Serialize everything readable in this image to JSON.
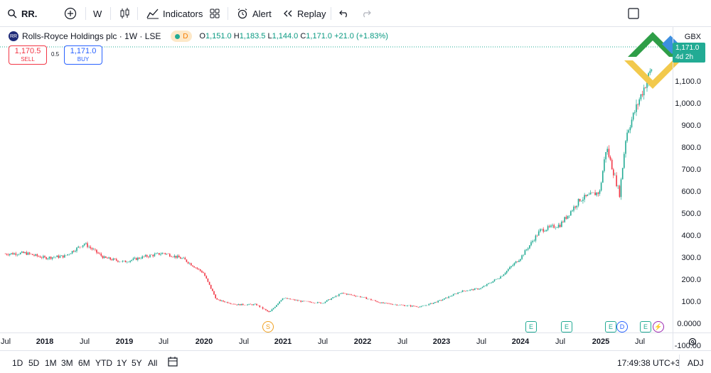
{
  "toolbar": {
    "symbol": "RR.",
    "interval": "W",
    "indicators_label": "Indicators",
    "alert_label": "Alert",
    "replay_label": "Replay"
  },
  "legend": {
    "title": "Rolls-Royce Holdings plc · 1W · LSE",
    "logo_text": "RR",
    "data_flag": "D",
    "o_key": "O",
    "o_val": "1,151.0",
    "h_key": "H",
    "h_val": "1,183.5",
    "l_key": "L",
    "l_val": "1,144.0",
    "c_key": "C",
    "c_val": "1,171.0",
    "change": "+21.0 (+1.83%)"
  },
  "trade": {
    "sell_price": "1,170.5",
    "sell_label": "SELL",
    "spread": "0.5",
    "buy_price": "1,171.0",
    "buy_label": "BUY"
  },
  "price_axis": {
    "labels": [
      "1,100.0",
      "1,000.0",
      "900.0",
      "800.0",
      "700.0",
      "600.0",
      "500.0",
      "400.0",
      "300.0",
      "200.0",
      "100.0",
      "0.0000",
      "-100.00"
    ],
    "top_label": "GBX",
    "last_price": "1,171.0",
    "countdown": "4d 2h"
  },
  "time_axis": {
    "labels": [
      "Jul",
      "2018",
      "Jul",
      "2019",
      "Jul",
      "2020",
      "Jul",
      "2021",
      "Jul",
      "2022",
      "Jul",
      "2023",
      "Jul",
      "2024",
      "Jul",
      "2025",
      "Jul"
    ]
  },
  "events": [
    "S",
    "E",
    "E",
    "E",
    "D",
    "E",
    "⚡"
  ],
  "bottom": {
    "timeframes": [
      "1D",
      "5D",
      "1M",
      "3M",
      "6M",
      "YTD",
      "1Y",
      "5Y",
      "All"
    ],
    "clock": "17:49:38 UTC+3",
    "adj": "ADJ"
  },
  "colors": {
    "up": "#22ab94",
    "down": "#f23645",
    "accent": "#2962ff"
  },
  "chart_data": {
    "type": "candlestick",
    "interval": "1W",
    "y_unit": "GBX",
    "ylim": [
      -130,
      1190
    ],
    "x_start": "2017-07",
    "x_end": "2025-09",
    "points": [
      [
        "2017-07",
        318
      ],
      [
        "2017-10",
        322
      ],
      [
        "2018-01",
        300
      ],
      [
        "2018-04",
        308
      ],
      [
        "2018-07",
        365
      ],
      [
        "2018-10",
        300
      ],
      [
        "2019-01",
        282
      ],
      [
        "2019-04",
        305
      ],
      [
        "2019-07",
        322
      ],
      [
        "2019-10",
        295
      ],
      [
        "2020-01",
        232
      ],
      [
        "2020-03",
        110
      ],
      [
        "2020-06",
        88
      ],
      [
        "2020-09",
        88
      ],
      [
        "2020-11",
        52
      ],
      [
        "2021-01",
        118
      ],
      [
        "2021-04",
        102
      ],
      [
        "2021-07",
        95
      ],
      [
        "2021-10",
        140
      ],
      [
        "2022-01",
        122
      ],
      [
        "2022-04",
        95
      ],
      [
        "2022-07",
        85
      ],
      [
        "2022-10",
        78
      ],
      [
        "2023-01",
        108
      ],
      [
        "2023-04",
        148
      ],
      [
        "2023-07",
        162
      ],
      [
        "2023-10",
        215
      ],
      [
        "2024-01",
        300
      ],
      [
        "2024-04",
        425
      ],
      [
        "2024-07",
        450
      ],
      [
        "2024-10",
        565
      ],
      [
        "2025-01",
        600
      ],
      [
        "2025-02",
        805
      ],
      [
        "2025-04",
        590
      ],
      [
        "2025-05",
        860
      ],
      [
        "2025-07",
        1020
      ],
      [
        "2025-09",
        1171
      ]
    ]
  }
}
